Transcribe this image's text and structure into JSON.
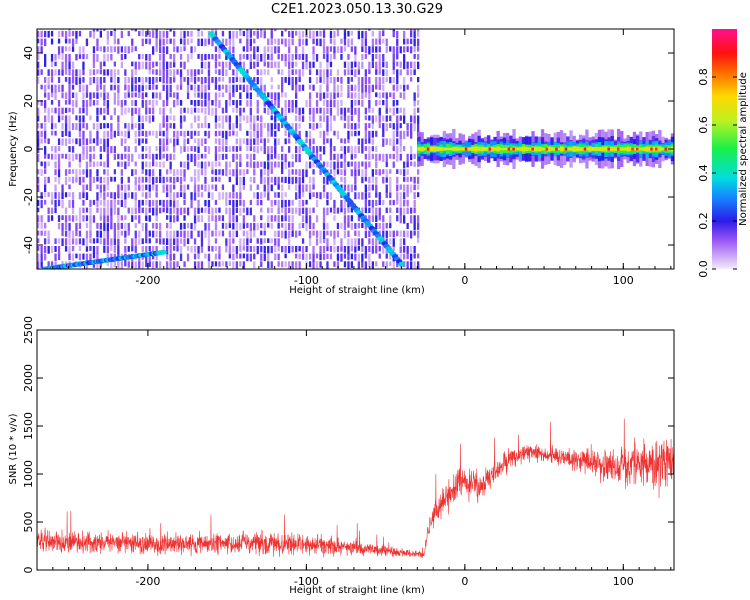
{
  "figure": {
    "title": "C2E1.2023.050.13.30.G29"
  },
  "chart_data": [
    {
      "type": "heatmap",
      "xlabel": "Height of straight line (km)",
      "ylabel": "Frequency (Hz)",
      "xlim": [
        -270,
        132
      ],
      "ylim": [
        -50,
        50
      ],
      "x_ticks": [
        -200,
        -100,
        0,
        100
      ],
      "y_ticks": [
        -40,
        -20,
        0,
        20,
        40
      ],
      "grid": false,
      "colormap": "hsv-rainbow",
      "noise_region_x": [
        -270,
        -30
      ],
      "signal_region_x": [
        -30,
        132
      ],
      "dominant_signal_frequency": 0,
      "features": [
        {
          "x": [
            -160,
            -40
          ],
          "y": [
            48,
            -48
          ]
        },
        {
          "x": [
            -265,
            -190
          ],
          "y": [
            -50,
            -43
          ]
        }
      ],
      "colorbar": {
        "label": "Normalized spectral amplitude",
        "range": [
          0,
          1
        ],
        "ticks": [
          0.0,
          0.2,
          0.4,
          0.6,
          0.8
        ]
      }
    },
    {
      "type": "line",
      "xlabel": "Height of straight line (km)",
      "ylabel": "SNR (10 * v/v)",
      "xlim": [
        -270,
        132
      ],
      "ylim": [
        0,
        2500
      ],
      "x_ticks": [
        -200,
        -100,
        0,
        100
      ],
      "y_ticks": [
        0,
        500,
        1000,
        1500,
        2000,
        2500
      ],
      "grid": false,
      "color": "#ee3333",
      "series": [
        {
          "x": [
            -270,
            -250,
            -230,
            -210,
            -190,
            -170,
            -150,
            -130,
            -110,
            -90,
            -70,
            -50,
            -40,
            -30,
            -26,
            -22,
            -15,
            -5,
            0,
            10,
            20,
            30,
            40,
            50,
            60,
            70,
            80,
            90,
            100,
            110,
            120,
            132
          ],
          "y": [
            300,
            290,
            280,
            280,
            270,
            270,
            280,
            280,
            270,
            260,
            240,
            200,
            180,
            170,
            150,
            500,
            700,
            900,
            950,
            850,
            1050,
            1180,
            1230,
            1200,
            1180,
            1150,
            1120,
            1100,
            1050,
            1100,
            1100,
            1150
          ],
          "spread": [
            200,
            200,
            200,
            200,
            200,
            200,
            200,
            200,
            190,
            170,
            150,
            100,
            80,
            60,
            60,
            200,
            300,
            350,
            300,
            250,
            220,
            180,
            150,
            150,
            160,
            200,
            250,
            300,
            350,
            450,
            450,
            400
          ]
        }
      ]
    }
  ]
}
